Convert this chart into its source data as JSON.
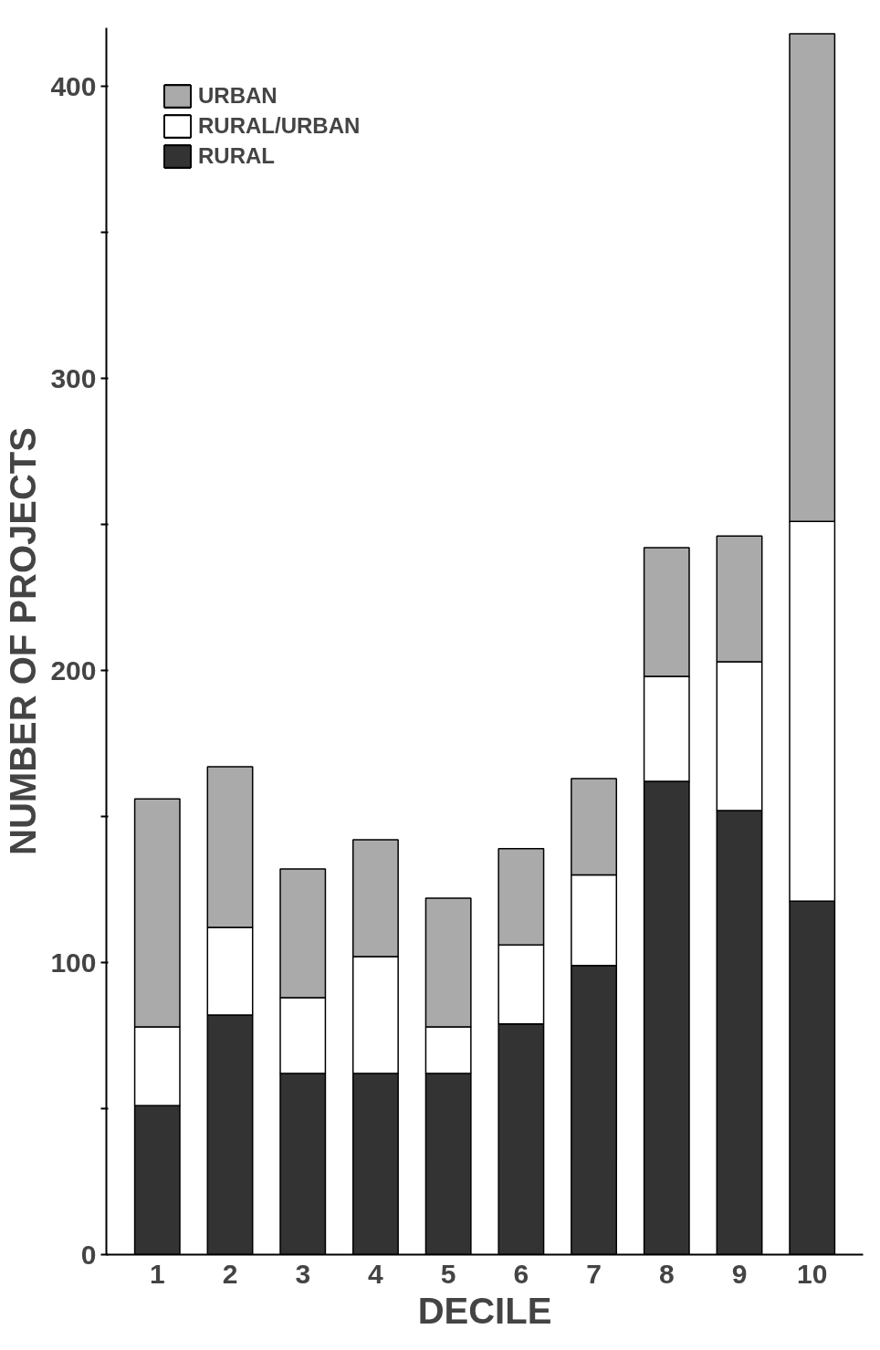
{
  "chart_data": {
    "type": "bar",
    "stacked": true,
    "xlabel": "DECILE",
    "ylabel": "NUMBER OF PROJECTS",
    "categories": [
      "1",
      "2",
      "3",
      "4",
      "5",
      "6",
      "7",
      "8",
      "9",
      "10"
    ],
    "series": [
      {
        "name": "RURAL",
        "color": "#333333",
        "values": [
          51,
          82,
          62,
          62,
          62,
          79,
          99,
          162,
          152,
          121
        ]
      },
      {
        "name": "RURAL/URBAN",
        "color": "#ffffff",
        "values": [
          27,
          30,
          26,
          40,
          16,
          27,
          31,
          36,
          51,
          130
        ]
      },
      {
        "name": "URBAN",
        "color": "#aaaaaa",
        "values": [
          78,
          55,
          44,
          40,
          44,
          33,
          33,
          44,
          43,
          167
        ]
      }
    ],
    "ylim": [
      0,
      420
    ],
    "yticks": [
      0,
      {
        "value": 50,
        "label": null
      },
      100,
      {
        "value": 150,
        "label": null
      },
      200,
      {
        "value": 250,
        "label": null
      },
      300,
      {
        "value": 350,
        "label": null
      },
      400
    ],
    "grid": false,
    "legend": "top left"
  }
}
